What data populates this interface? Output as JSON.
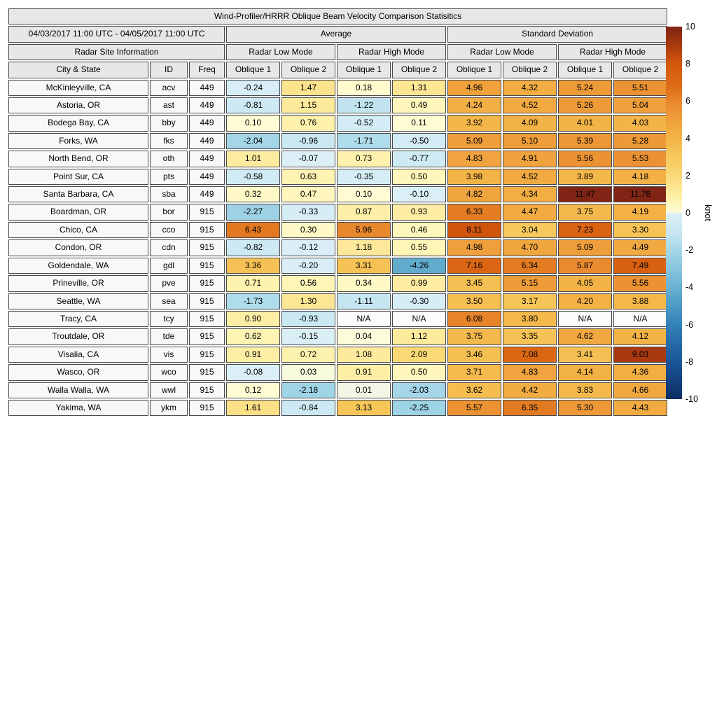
{
  "chart_data": {
    "type": "table",
    "title": "Wind-Profiler/HRRR Oblique Beam Velocity Comparison Statisitics",
    "date_range": "04/03/2017 11:00 UTC - 04/05/2017 11:00 UTC",
    "group_headers": [
      "Average",
      "Standard Deviation"
    ],
    "site_info_header": "Radar Site Information",
    "subgroup_headers": [
      "Radar Low Mode",
      "Radar High Mode",
      "Radar Low Mode",
      "Radar High Mode"
    ],
    "columns": [
      "City & State",
      "ID",
      "Freq",
      "Oblique 1",
      "Oblique 2",
      "Oblique 1",
      "Oblique 2",
      "Oblique 1",
      "Oblique 2",
      "Oblique 1",
      "Oblique 2"
    ],
    "na_text": "N/A",
    "rows": [
      {
        "city": "McKinleyville, CA",
        "id": "acv",
        "freq": "449",
        "values": [
          -0.24,
          1.47,
          0.18,
          1.31,
          4.96,
          4.32,
          5.24,
          5.51
        ]
      },
      {
        "city": "Astoria, OR",
        "id": "ast",
        "freq": "449",
        "values": [
          -0.81,
          1.15,
          -1.22,
          0.49,
          4.24,
          4.52,
          5.26,
          5.04
        ]
      },
      {
        "city": "Bodega Bay, CA",
        "id": "bby",
        "freq": "449",
        "values": [
          0.1,
          0.76,
          -0.52,
          0.11,
          3.92,
          4.09,
          4.01,
          4.03
        ]
      },
      {
        "city": "Forks, WA",
        "id": "fks",
        "freq": "449",
        "values": [
          -2.04,
          -0.96,
          -1.71,
          -0.5,
          5.09,
          5.1,
          5.39,
          5.28
        ]
      },
      {
        "city": "North Bend, OR",
        "id": "oth",
        "freq": "449",
        "values": [
          1.01,
          -0.07,
          0.73,
          -0.77,
          4.83,
          4.91,
          5.56,
          5.53
        ]
      },
      {
        "city": "Point Sur, CA",
        "id": "pts",
        "freq": "449",
        "values": [
          -0.58,
          0.63,
          -0.35,
          0.5,
          3.98,
          4.52,
          3.89,
          4.18
        ]
      },
      {
        "city": "Santa Barbara, CA",
        "id": "sba",
        "freq": "449",
        "values": [
          0.32,
          0.47,
          0.1,
          -0.1,
          4.82,
          4.34,
          11.47,
          11.76
        ]
      },
      {
        "city": "Boardman, OR",
        "id": "bor",
        "freq": "915",
        "values": [
          -2.27,
          -0.33,
          0.87,
          0.93,
          6.33,
          4.47,
          3.75,
          4.19
        ]
      },
      {
        "city": "Chico, CA",
        "id": "cco",
        "freq": "915",
        "values": [
          6.43,
          0.3,
          5.96,
          0.46,
          8.11,
          3.04,
          7.23,
          3.3
        ]
      },
      {
        "city": "Condon, OR",
        "id": "cdn",
        "freq": "915",
        "values": [
          -0.82,
          -0.12,
          1.18,
          0.55,
          4.98,
          4.7,
          5.09,
          4.49
        ]
      },
      {
        "city": "Goldendale, WA",
        "id": "gdl",
        "freq": "915",
        "values": [
          3.36,
          -0.2,
          3.31,
          -4.26,
          7.16,
          6.34,
          5.87,
          7.49
        ]
      },
      {
        "city": "Prineville, OR",
        "id": "pve",
        "freq": "915",
        "values": [
          0.71,
          0.56,
          0.34,
          0.99,
          3.45,
          5.15,
          4.05,
          5.56
        ]
      },
      {
        "city": "Seattle, WA",
        "id": "sea",
        "freq": "915",
        "values": [
          -1.73,
          1.3,
          -1.11,
          -0.3,
          3.5,
          3.17,
          4.2,
          3.88
        ]
      },
      {
        "city": "Tracy, CA",
        "id": "tcy",
        "freq": "915",
        "values": [
          0.9,
          -0.93,
          "N/A",
          "N/A",
          6.08,
          3.8,
          "N/A",
          "N/A"
        ]
      },
      {
        "city": "Troutdale, OR",
        "id": "tde",
        "freq": "915",
        "values": [
          0.62,
          -0.15,
          0.04,
          1.12,
          3.75,
          3.35,
          4.62,
          4.12
        ]
      },
      {
        "city": "Visalia, CA",
        "id": "vis",
        "freq": "915",
        "values": [
          0.91,
          0.72,
          1.08,
          2.09,
          3.46,
          7.08,
          3.41,
          9.03
        ]
      },
      {
        "city": "Wasco, OR",
        "id": "wco",
        "freq": "915",
        "values": [
          -0.08,
          0.03,
          0.91,
          0.5,
          3.71,
          4.83,
          4.14,
          4.36
        ]
      },
      {
        "city": "Walla Walla, WA",
        "id": "wwl",
        "freq": "915",
        "values": [
          0.12,
          -2.18,
          0.01,
          -2.03,
          3.62,
          4.42,
          3.83,
          4.66
        ]
      },
      {
        "city": "Yakima, WA",
        "id": "ykm",
        "freq": "915",
        "values": [
          1.61,
          -0.84,
          3.13,
          -2.25,
          5.57,
          6.35,
          5.3,
          4.43
        ]
      }
    ],
    "colorbar": {
      "label": "knot",
      "min": -10,
      "max": 10,
      "ticks": [
        "10",
        "8",
        "6",
        "4",
        "2",
        "0",
        "-2",
        "-4",
        "-6",
        "-8",
        "-10"
      ],
      "colormap_stops": [
        [
          -10,
          "#0A2E64"
        ],
        [
          -8,
          "#1A5598"
        ],
        [
          -6,
          "#3282B8"
        ],
        [
          -5,
          "#4C9BC6"
        ],
        [
          -4,
          "#68B1D0"
        ],
        [
          -3,
          "#86C5DD"
        ],
        [
          -2,
          "#A5D7E8"
        ],
        [
          -1,
          "#C9E8F2"
        ],
        [
          -0.05,
          "#DCEFF7"
        ],
        [
          0.05,
          "#FFFDD8"
        ],
        [
          0.5,
          "#FEF6BA"
        ],
        [
          1,
          "#FDECA0"
        ],
        [
          1.5,
          "#FCE28C"
        ],
        [
          2,
          "#FAD978"
        ],
        [
          3,
          "#F7C95C"
        ],
        [
          4,
          "#F3B447"
        ],
        [
          5,
          "#EFA03C"
        ],
        [
          6,
          "#E8872C"
        ],
        [
          6.5,
          "#E1761E"
        ],
        [
          7,
          "#DC6814"
        ],
        [
          8,
          "#D4580D"
        ],
        [
          9,
          "#A93A10"
        ],
        [
          9.5,
          "#932C0F"
        ],
        [
          10,
          "#802515"
        ]
      ]
    },
    "colors": {
      "header_bg": "#e7e7e7",
      "label_bg": "#f8f8f8",
      "na_bg": "#fbfbfb",
      "border": "#4a4a4a"
    }
  }
}
